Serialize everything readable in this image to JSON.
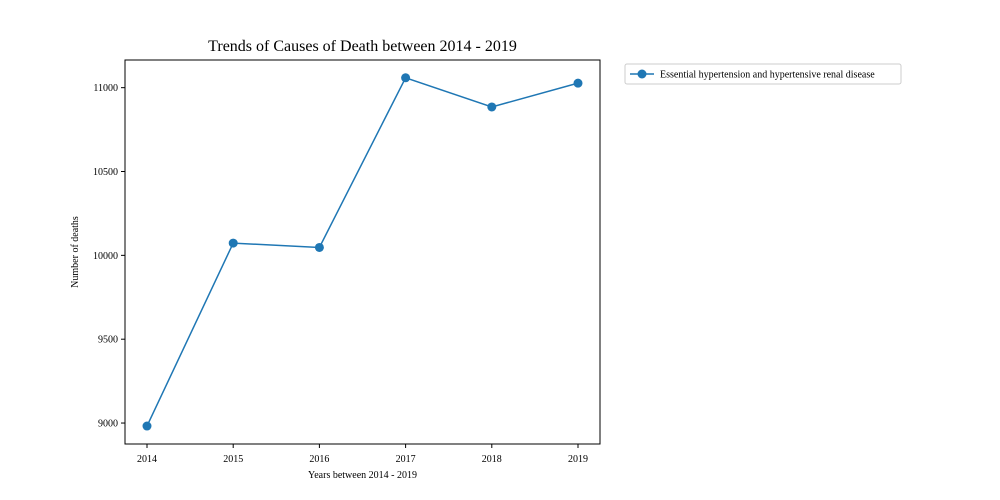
{
  "chart_data": {
    "type": "line",
    "title": "Trends of Causes of Death between 2014 - 2019",
    "xlabel": "Years between 2014 - 2019",
    "ylabel": "Number of deaths",
    "x": [
      "2014",
      "2015",
      "2016",
      "2017",
      "2018",
      "2019"
    ],
    "series": [
      {
        "name": "Essential hypertension and hypertensive renal disease",
        "values": [
          8982,
          10073,
          10047,
          11059,
          10885,
          11027
        ],
        "color": "#1f77b4"
      }
    ],
    "ylim": [
      8875,
      11165
    ],
    "yticks": [
      9000,
      9500,
      10000,
      10500,
      11000
    ],
    "grid": false,
    "legend_placement": "outside-upper-right"
  }
}
